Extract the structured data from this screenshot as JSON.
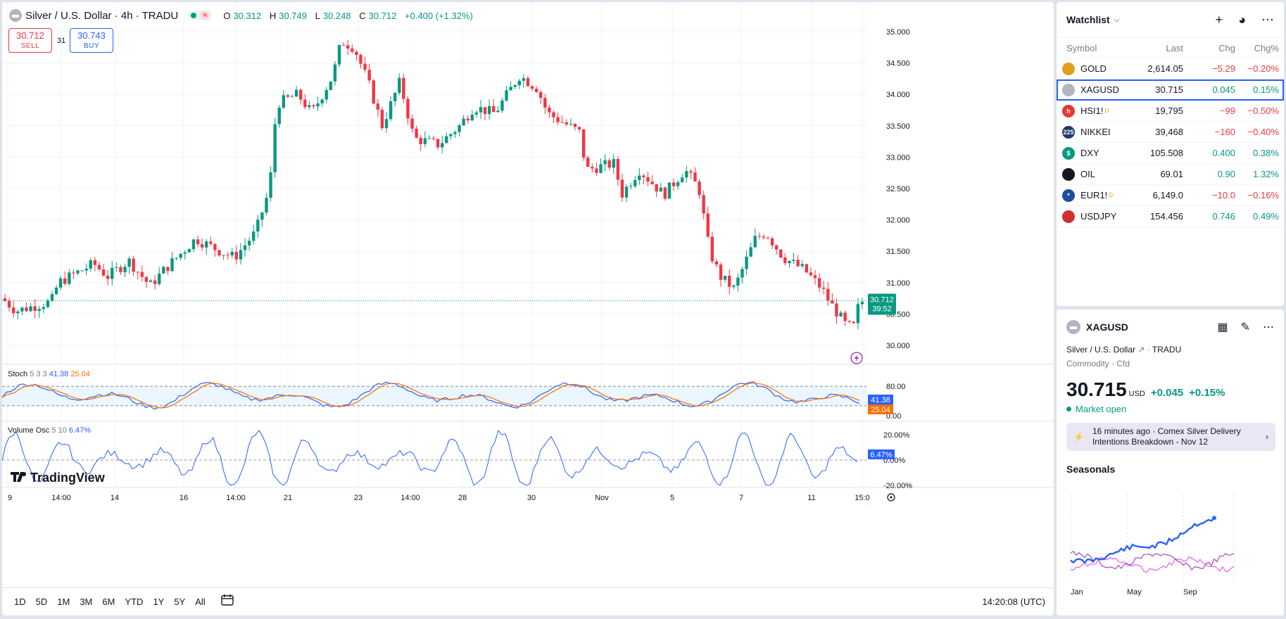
{
  "header": {
    "symbol_title": "Silver / U.S. Dollar · 4h · TRADU",
    "ohlc": {
      "o_label": "O",
      "o": "30.312",
      "h_label": "H",
      "h": "30.749",
      "l_label": "L",
      "l": "30.248",
      "c_label": "C",
      "c": "30.712",
      "change": "+0.400 (+1.32%)"
    },
    "pill_wave": "≈"
  },
  "trade": {
    "sell_price": "30.712",
    "sell_label": "SELL",
    "spread": "31",
    "buy_price": "30.743",
    "buy_label": "BUY"
  },
  "price_axis": {
    "labels": [
      "35.000",
      "34.500",
      "34.000",
      "33.500",
      "33.000",
      "32.500",
      "32.000",
      "31.500",
      "31.000",
      "30.500",
      "30.000"
    ],
    "current_price": "30.712",
    "countdown": "39:52"
  },
  "indicators": {
    "stoch": {
      "name": "Stoch",
      "params": "5 3 3",
      "k": "41.38",
      "d": "25.04",
      "axis": [
        "80.00",
        "0.00"
      ]
    },
    "volosc": {
      "name": "Volume Osc",
      "params": "5 10",
      "value": "6.47%",
      "axis": [
        "20.00%",
        "0.00%",
        "-20.00%"
      ]
    }
  },
  "time_axis": [
    "9",
    "14:00",
    "14",
    "16",
    "14:00",
    "21",
    "23",
    "14:00",
    "28",
    "30",
    "Nov",
    "5",
    "7",
    "11",
    "15:0"
  ],
  "logo": "TradingView",
  "bottom": {
    "ranges": [
      "1D",
      "5D",
      "1M",
      "3M",
      "6M",
      "YTD",
      "1Y",
      "5Y",
      "All"
    ],
    "clock": "14:20:08 (UTC)"
  },
  "watchlist": {
    "title": "Watchlist",
    "columns": [
      "Symbol",
      "Last",
      "Chg",
      "Chg%"
    ],
    "rows": [
      {
        "symbol": "GOLD",
        "last": "2,614.05",
        "chg": "−5.29",
        "pct": "−0.20%",
        "dir": "down",
        "icon_color": "#e0a21c",
        "icon_text": "",
        "sup": ""
      },
      {
        "symbol": "XAGUSD",
        "last": "30.715",
        "chg": "0.045",
        "pct": "0.15%",
        "dir": "up",
        "icon_color": "#b2b5be",
        "icon_text": "",
        "sup": ""
      },
      {
        "symbol": "HSI1!",
        "last": "19,795",
        "chg": "−99",
        "pct": "−0.50%",
        "dir": "down",
        "icon_color": "#e53935",
        "icon_text": "h",
        "sup": "D"
      },
      {
        "symbol": "NIKKEI",
        "last": "39,468",
        "chg": "−160",
        "pct": "−0.40%",
        "dir": "down",
        "icon_color": "#1e3a6e",
        "icon_text": "225",
        "sup": ""
      },
      {
        "symbol": "DXY",
        "last": "105.508",
        "chg": "0.400",
        "pct": "0.38%",
        "dir": "up",
        "icon_color": "#089981",
        "icon_text": "$",
        "sup": ""
      },
      {
        "symbol": "OIL",
        "last": "69.01",
        "chg": "0.90",
        "pct": "1.32%",
        "dir": "up",
        "icon_color": "#131722",
        "icon_text": "",
        "sup": ""
      },
      {
        "symbol": "EUR1!",
        "last": "6,149.0",
        "chg": "−10.0",
        "pct": "−0.16%",
        "dir": "down",
        "icon_color": "#1f4e9c",
        "icon_text": "*",
        "sup": "D"
      },
      {
        "symbol": "USDJPY",
        "last": "154.456",
        "chg": "0.746",
        "pct": "0.49%",
        "dir": "up",
        "icon_color": "#d32f2f",
        "icon_text": "",
        "sup": ""
      }
    ]
  },
  "details": {
    "symbol": "XAGUSD",
    "name": "Silver / U.S. Dollar",
    "exchange": "TRADU",
    "type_line": "Commodity · Cfd",
    "price": "30.715",
    "currency": "USD",
    "change": "+0.045",
    "change_pct": "+0.15%",
    "market_status": "Market open",
    "news": "16 minutes ago · Comex Silver Delivery Intentions Breakdown - Nov 12",
    "seasonals_title": "Seasonals",
    "seasonals_months": [
      "Jan",
      "May",
      "Sep"
    ]
  },
  "colors": {
    "up": "#089981",
    "down": "#f23645",
    "accent": "#2962ff",
    "stoch_d": "#ff6d00"
  }
}
